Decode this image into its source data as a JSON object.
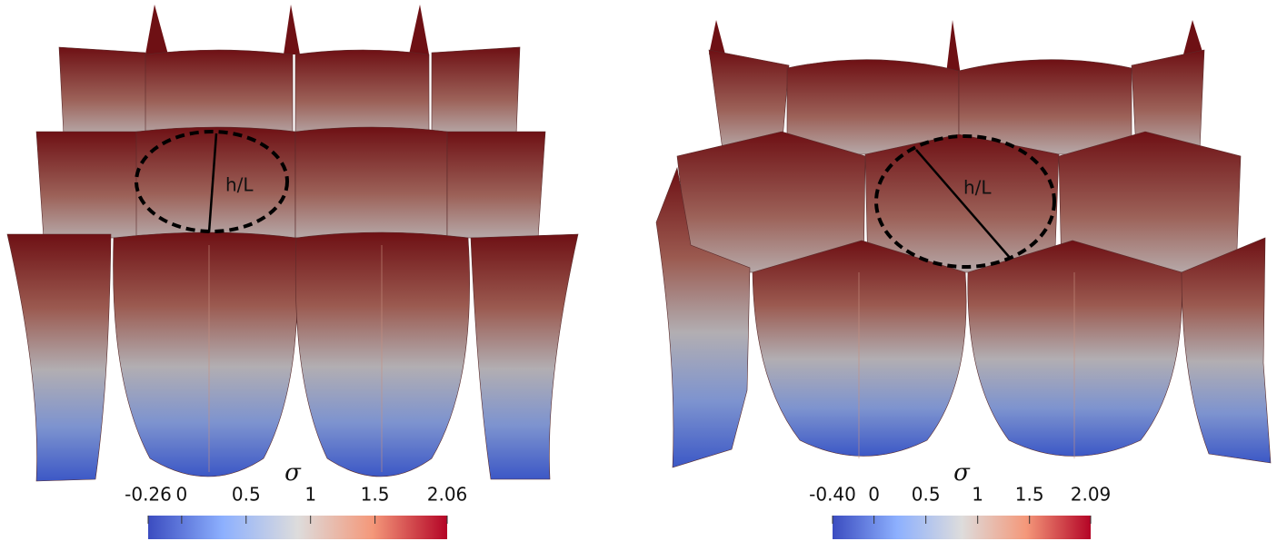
{
  "panels": [
    {
      "annotation": "h/L",
      "colorbar": {
        "title": "σ",
        "lim": [
          -0.26,
          2.06
        ],
        "ticks": [
          -0.26,
          0,
          0.5,
          1,
          1.5,
          2.06
        ]
      }
    },
    {
      "annotation": "h/L",
      "colorbar": {
        "title": "σ",
        "lim": [
          -0.4,
          2.09
        ],
        "ticks": [
          {
            "value": -0.4,
            "label": "-0.40"
          },
          0,
          0.5,
          1,
          1.5,
          2.09
        ]
      }
    }
  ]
}
